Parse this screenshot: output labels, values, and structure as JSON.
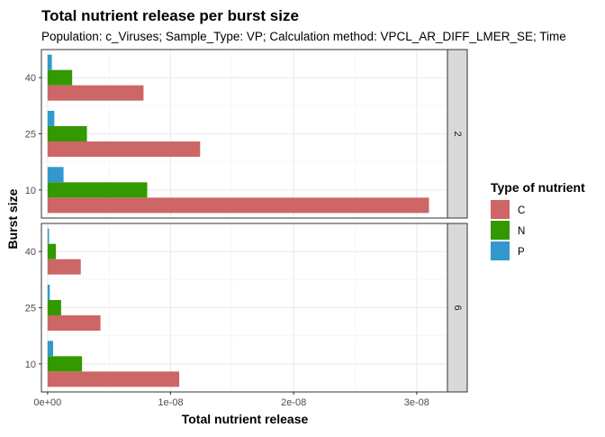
{
  "chart_data": {
    "type": "bar",
    "orientation": "horizontal",
    "title": "Total nutrient release per burst size",
    "subtitle": "Population: c_Viruses; Sample_Type: VP; Calculation method: VPCL_AR_DIFF_LMER_SE; Time",
    "xlabel": "Total nutrient release",
    "ylabel": "Burst size",
    "xlim": [
      -5e-10,
      3.25e-08
    ],
    "x_ticks": [
      "0e+00",
      "1e-08",
      "2e-08",
      "3e-08"
    ],
    "x_tick_values": [
      0,
      1e-08,
      2e-08,
      3e-08
    ],
    "categories": [
      "10",
      "25",
      "40"
    ],
    "grid": true,
    "legend": {
      "title": "Type of nutrient",
      "placement": "right",
      "entries": [
        "C",
        "N",
        "P"
      ]
    },
    "colors": {
      "C": "#CD6666",
      "N": "#339900",
      "P": "#3399CC"
    },
    "facets": [
      {
        "label": "2",
        "series": [
          {
            "name": "C",
            "values": [
              3.1e-08,
              1.24e-08,
              7.8e-09
            ]
          },
          {
            "name": "N",
            "values": [
              8.1e-09,
              3.2e-09,
              2e-09
            ]
          },
          {
            "name": "P",
            "values": [
              1.3e-09,
              5.5e-10,
              3.5e-10
            ]
          }
        ]
      },
      {
        "label": "6",
        "series": [
          {
            "name": "C",
            "values": [
              1.07e-08,
              4.3e-09,
              2.7e-09
            ]
          },
          {
            "name": "N",
            "values": [
              2.8e-09,
              1.1e-09,
              6.8e-10
            ]
          },
          {
            "name": "P",
            "values": [
              4.5e-10,
              1.8e-10,
              1.2e-10
            ]
          }
        ]
      }
    ]
  }
}
